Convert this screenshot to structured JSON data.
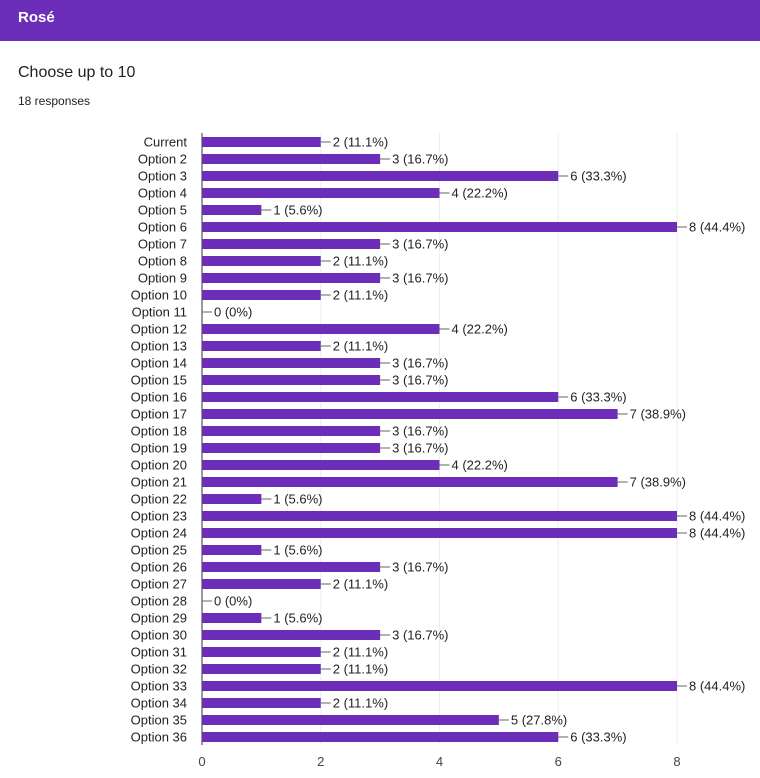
{
  "header": {
    "title": "Rosé"
  },
  "question": {
    "title": "Choose up to 10",
    "responses": "18 responses"
  },
  "colors": {
    "accent": "#6c2eb9",
    "bar": "#6c2eb9",
    "grid": "#eeeeee",
    "axis": "#333333",
    "text": "#202124"
  },
  "chart_data": {
    "type": "bar",
    "orientation": "horizontal",
    "categories": [
      "Current",
      "Option 2",
      "Option 3",
      "Option 4",
      "Option 5",
      "Option 6",
      "Option 7",
      "Option 8",
      "Option 9",
      "Option 10",
      "Option 11",
      "Option 12",
      "Option 13",
      "Option 14",
      "Option 15",
      "Option 16",
      "Option 17",
      "Option 18",
      "Option 19",
      "Option 20",
      "Option 21",
      "Option 22",
      "Option 23",
      "Option 24",
      "Option 25",
      "Option 26",
      "Option 27",
      "Option 28",
      "Option 29",
      "Option 30",
      "Option 31",
      "Option 32",
      "Option 33",
      "Option 34",
      "Option 35",
      "Option 36"
    ],
    "values": [
      2,
      3,
      6,
      4,
      1,
      8,
      3,
      2,
      3,
      2,
      0,
      4,
      2,
      3,
      3,
      6,
      7,
      3,
      3,
      4,
      7,
      1,
      8,
      8,
      1,
      3,
      2,
      0,
      1,
      3,
      2,
      2,
      8,
      2,
      5,
      6
    ],
    "data_labels": [
      "2 (11.1%)",
      "3 (16.7%)",
      "6 (33.3%)",
      "4 (22.2%)",
      "1 (5.6%)",
      "8 (44.4%)",
      "3 (16.7%)",
      "2 (11.1%)",
      "3 (16.7%)",
      "2 (11.1%)",
      "0 (0%)",
      "4 (22.2%)",
      "2 (11.1%)",
      "3 (16.7%)",
      "3 (16.7%)",
      "6 (33.3%)",
      "7 (38.9%)",
      "3 (16.7%)",
      "3 (16.7%)",
      "4 (22.2%)",
      "7 (38.9%)",
      "1 (5.6%)",
      "8 (44.4%)",
      "8 (44.4%)",
      "1 (5.6%)",
      "3 (16.7%)",
      "2 (11.1%)",
      "0 (0%)",
      "1 (5.6%)",
      "3 (16.7%)",
      "2 (11.1%)",
      "2 (11.1%)",
      "8 (44.4%)",
      "2 (11.1%)",
      "5 (27.8%)",
      "6 (33.3%)"
    ],
    "xlim": [
      0,
      8
    ],
    "xticks": [
      "0",
      "2",
      "4",
      "6",
      "8"
    ],
    "grid": true,
    "legend": "none"
  }
}
